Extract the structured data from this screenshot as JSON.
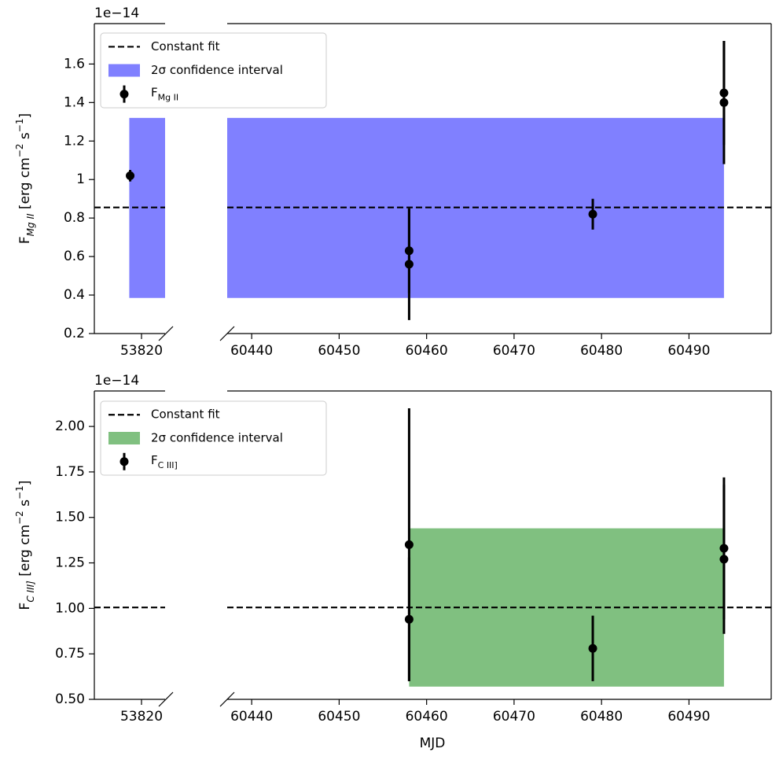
{
  "chart_data": [
    {
      "type": "errorbar",
      "offset_text": "1e−14",
      "ylabel": [
        {
          "text": "F"
        },
        {
          "text": "Mg II",
          "sub": true,
          "italic": true
        },
        {
          "text": " [erg cm"
        },
        {
          "text": "−2",
          "sup": true
        },
        {
          "text": " s"
        },
        {
          "text": "−1",
          "sup": true
        },
        {
          "text": "]"
        }
      ],
      "ylim": [
        0.2,
        1.81
      ],
      "yticks": [
        0.2,
        0.4,
        0.6,
        0.8,
        1.0,
        1.2,
        1.4,
        1.6
      ],
      "xaxes": [
        {
          "xlim": [
            53814.6,
            53822.7
          ],
          "xticks": [
            53820
          ]
        },
        {
          "xlim": [
            60437.2,
            60499.4
          ],
          "xticks": [
            60440,
            60450,
            60460,
            60470,
            60480,
            60490
          ]
        }
      ],
      "fit": {
        "name": "Constant fit",
        "value": 0.855,
        "color": "#000000"
      },
      "band": {
        "name": "2σ confidence interval",
        "x": [
          53818.6,
          60494
        ],
        "low": 0.385,
        "high": 1.32,
        "color": "#8080ff"
      },
      "series": [
        {
          "name": [
            {
              "text": "F"
            },
            {
              "text": "Mg II",
              "sub": true
            }
          ],
          "color": "#000000",
          "x": [
            53818.7,
            60458,
            60458,
            60479,
            60494,
            60494
          ],
          "values": [
            1.02,
            0.63,
            0.56,
            0.82,
            1.45,
            1.4
          ],
          "errors": [
            0.03,
            0.22,
            0.29,
            0.08,
            0.27,
            0.32
          ]
        }
      ]
    },
    {
      "type": "errorbar",
      "offset_text": "1e−14",
      "xlabel": "MJD",
      "ylabel": [
        {
          "text": "F"
        },
        {
          "text": "C III]",
          "sub": true,
          "italic": true
        },
        {
          "text": " [erg cm"
        },
        {
          "text": "−2",
          "sup": true
        },
        {
          "text": " s"
        },
        {
          "text": "−1",
          "sup": true
        },
        {
          "text": "]"
        }
      ],
      "ylim": [
        0.5,
        2.195
      ],
      "yticks": [
        {
          "value": 0.5,
          "label": "0.50"
        },
        {
          "value": 0.75,
          "label": "0.75"
        },
        {
          "value": 1.0,
          "label": "1.00"
        },
        {
          "value": 1.25,
          "label": "1.25"
        },
        {
          "value": 1.5,
          "label": "1.50"
        },
        {
          "value": 1.75,
          "label": "1.75"
        },
        {
          "value": 2.0,
          "label": "2.00"
        }
      ],
      "xaxes": [
        {
          "xlim": [
            53814.6,
            53822.7
          ],
          "xticks": [
            53820
          ]
        },
        {
          "xlim": [
            60437.2,
            60499.4
          ],
          "xticks": [
            60440,
            60450,
            60460,
            60470,
            60480,
            60490
          ]
        }
      ],
      "fit": {
        "name": "Constant fit",
        "value": 1.005,
        "color": "#000000"
      },
      "band": {
        "name": "2σ confidence interval",
        "x": [
          60458,
          60494
        ],
        "low": 0.57,
        "high": 1.44,
        "color": "#80c080"
      },
      "series": [
        {
          "name": [
            {
              "text": "F"
            },
            {
              "text": "C III]",
              "sub": true
            }
          ],
          "color": "#000000",
          "x": [
            60458,
            60458,
            60479,
            60494,
            60494
          ],
          "values": [
            1.35,
            0.94,
            0.78,
            1.33,
            1.27
          ],
          "errors": [
            0.75,
            0.34,
            0.18,
            0.39,
            0.41
          ]
        }
      ]
    }
  ]
}
